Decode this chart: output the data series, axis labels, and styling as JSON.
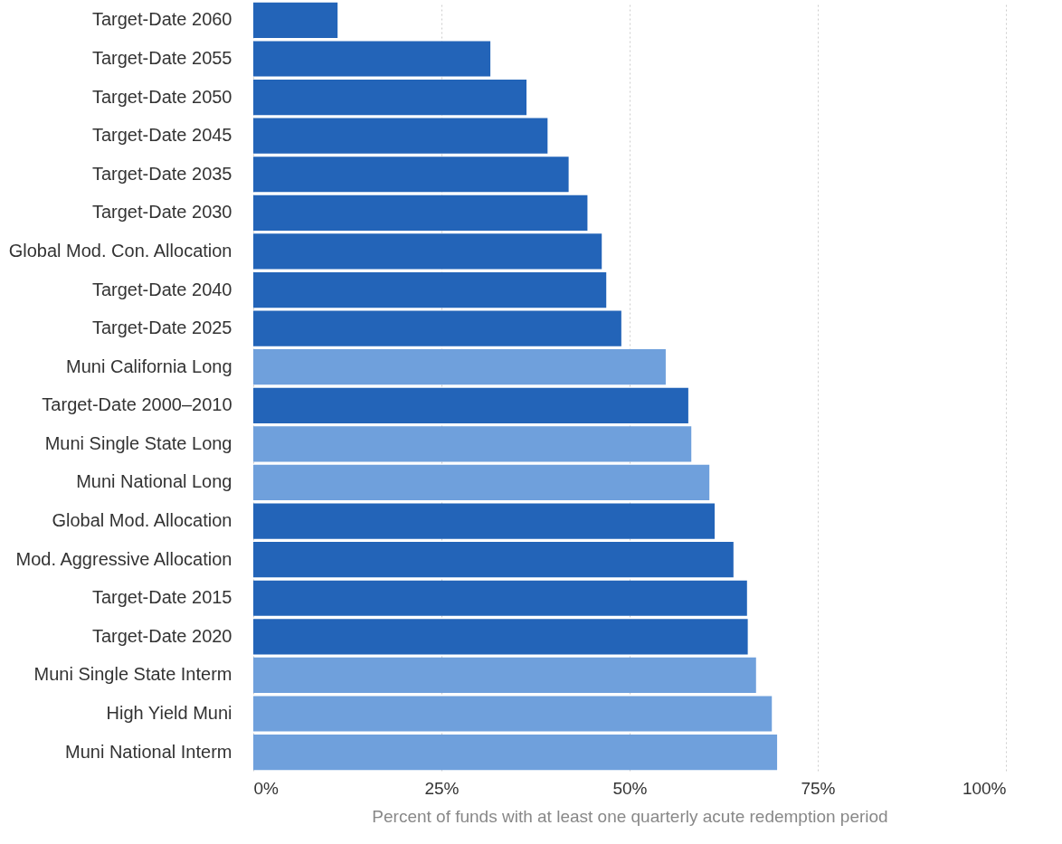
{
  "chart_data": {
    "type": "bar",
    "orientation": "horizontal",
    "xlabel": "Percent of funds with at least one quarterly acute redemption period",
    "categories": [
      "Target-Date 2060",
      "Target-Date 2055",
      "Target-Date 2050",
      "Target-Date 2045",
      "Target-Date 2035",
      "Target-Date 2030",
      "Global Mod. Con. Allocation",
      "Target-Date 2040",
      "Target-Date 2025",
      "Muni California Long",
      "Target-Date 2000–2010",
      "Muni Single State Long",
      "Muni National Long",
      "Global Mod. Allocation",
      "Mod. Aggressive Allocation",
      "Target-Date 2015",
      "Target-Date 2020",
      "Muni Single State Interm",
      "High Yield Muni",
      "Muni National Interm"
    ],
    "values": [
      11.2,
      31.5,
      36.3,
      39.1,
      41.9,
      44.4,
      46.3,
      46.9,
      48.9,
      54.8,
      57.8,
      58.2,
      60.6,
      61.3,
      63.8,
      65.6,
      65.7,
      66.8,
      68.9,
      69.6
    ],
    "colors": [
      "#2364b8",
      "#2364b8",
      "#2364b8",
      "#2364b8",
      "#2364b8",
      "#2364b8",
      "#2364b8",
      "#2364b8",
      "#2364b8",
      "#6fa0dc",
      "#2364b8",
      "#6fa0dc",
      "#6fa0dc",
      "#2364b8",
      "#2364b8",
      "#2364b8",
      "#2364b8",
      "#6fa0dc",
      "#6fa0dc",
      "#6fa0dc"
    ],
    "xlim": [
      0,
      100
    ],
    "xticks": [
      {
        "value": 0,
        "label": "0%"
      },
      {
        "value": 25,
        "label": "25%"
      },
      {
        "value": 50,
        "label": "50%"
      },
      {
        "value": 75,
        "label": "75%"
      },
      {
        "value": 100,
        "label": "100%"
      }
    ],
    "grid": "x"
  }
}
